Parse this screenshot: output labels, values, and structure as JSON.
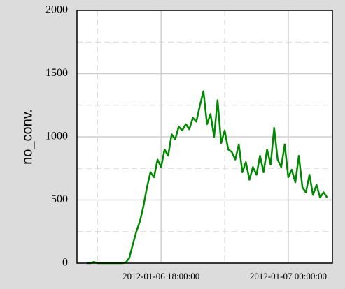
{
  "chart_data": {
    "type": "line",
    "ylabel": "no_conv.",
    "x": [
      "2012-01-06 14:30:00",
      "2012-01-06 14:40:00",
      "2012-01-06 14:50:00",
      "2012-01-06 15:00:00",
      "2012-01-06 15:10:00",
      "2012-01-06 15:20:00",
      "2012-01-06 15:30:00",
      "2012-01-06 15:40:00",
      "2012-01-06 15:50:00",
      "2012-01-06 16:00:00",
      "2012-01-06 16:10:00",
      "2012-01-06 16:20:00",
      "2012-01-06 16:30:00",
      "2012-01-06 16:40:00",
      "2012-01-06 16:50:00",
      "2012-01-06 17:00:00",
      "2012-01-06 17:10:00",
      "2012-01-06 17:20:00",
      "2012-01-06 17:30:00",
      "2012-01-06 17:40:00",
      "2012-01-06 17:50:00",
      "2012-01-06 18:00:00",
      "2012-01-06 18:10:00",
      "2012-01-06 18:20:00",
      "2012-01-06 18:30:00",
      "2012-01-06 18:40:00",
      "2012-01-06 18:50:00",
      "2012-01-06 19:00:00",
      "2012-01-06 19:10:00",
      "2012-01-06 19:20:00",
      "2012-01-06 19:30:00",
      "2012-01-06 19:40:00",
      "2012-01-06 19:50:00",
      "2012-01-06 20:00:00",
      "2012-01-06 20:10:00",
      "2012-01-06 20:20:00",
      "2012-01-06 20:30:00",
      "2012-01-06 20:40:00",
      "2012-01-06 20:50:00",
      "2012-01-06 21:00:00",
      "2012-01-06 21:10:00",
      "2012-01-06 21:20:00",
      "2012-01-06 21:30:00",
      "2012-01-06 21:40:00",
      "2012-01-06 21:50:00",
      "2012-01-06 22:00:00",
      "2012-01-06 22:10:00",
      "2012-01-06 22:20:00",
      "2012-01-06 22:30:00",
      "2012-01-06 22:40:00",
      "2012-01-06 22:50:00",
      "2012-01-06 23:00:00",
      "2012-01-06 23:10:00",
      "2012-01-06 23:20:00",
      "2012-01-06 23:30:00",
      "2012-01-06 23:40:00",
      "2012-01-06 23:50:00",
      "2012-01-07 00:00:00",
      "2012-01-07 00:10:00",
      "2012-01-07 00:20:00",
      "2012-01-07 00:30:00",
      "2012-01-07 00:40:00",
      "2012-01-07 00:50:00",
      "2012-01-07 01:00:00",
      "2012-01-07 01:10:00",
      "2012-01-07 01:20:00",
      "2012-01-07 01:30:00",
      "2012-01-07 01:40:00",
      "2012-01-07 01:50:00"
    ],
    "series": [
      {
        "color": "#008800",
        "values": [
          0,
          0,
          10,
          0,
          0,
          0,
          0,
          0,
          0,
          0,
          0,
          5,
          40,
          150,
          250,
          330,
          450,
          600,
          720,
          680,
          820,
          760,
          900,
          850,
          1020,
          980,
          1080,
          1050,
          1100,
          1060,
          1150,
          1120,
          1250,
          1360,
          1100,
          1180,
          1000,
          1290,
          950,
          1050,
          900,
          880,
          820,
          940,
          720,
          800,
          660,
          760,
          700,
          850,
          720,
          900,
          780,
          1070,
          820,
          760,
          940,
          680,
          740,
          640,
          850,
          600,
          560,
          700,
          540,
          620,
          520,
          560,
          520
        ]
      }
    ],
    "xlim": [
      "2012-01-06 14:02:00",
      "2012-01-07 02:05:00"
    ],
    "xticks": [
      "2012-01-06 18:00:00",
      "2012-01-07 00:00:00"
    ],
    "ylim": [
      0,
      2000
    ],
    "yticks": [
      0,
      500,
      1000,
      1500,
      2000
    ],
    "grid": true,
    "minor_grid": true
  }
}
